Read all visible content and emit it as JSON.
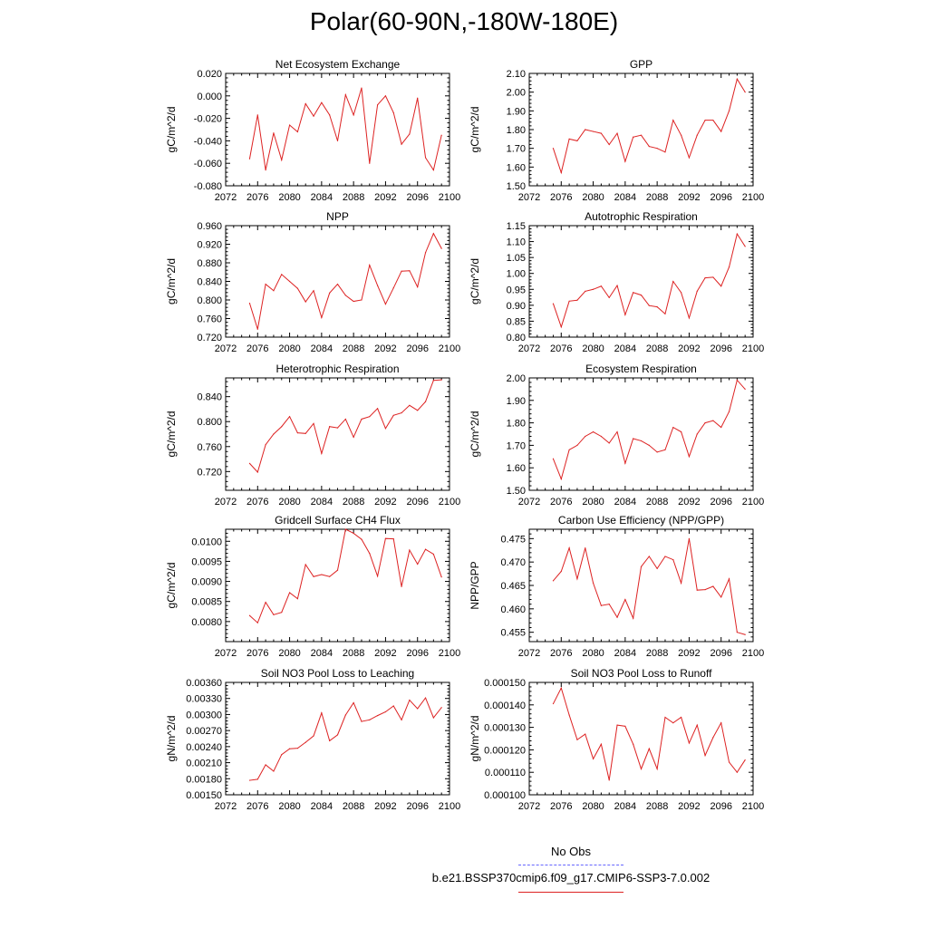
{
  "title": "Polar(60-90N,-180W-180E)",
  "legend": {
    "obs_label": "No Obs",
    "obs_color": "#6666ff",
    "model_label": "b.e21.BSSP370cmip6.f09_g17.CMIP6-SSP3-7.0.002",
    "model_color": "#dd2222"
  },
  "chart_data": [
    {
      "type": "line",
      "title": "Net Ecosystem Exchange",
      "ylabel": "gC/m^2/d",
      "xlim": [
        2072,
        2100
      ],
      "xticks": [
        "2072",
        "2076",
        "2080",
        "2084",
        "2088",
        "2092",
        "2096",
        "2100"
      ],
      "ylim": [
        -0.08,
        0.02
      ],
      "yticks": [
        "0.020",
        "0.000",
        "-0.020",
        "-0.040",
        "-0.060",
        "-0.080"
      ],
      "x": [
        2075,
        2076,
        2077,
        2078,
        2079,
        2080,
        2081,
        2082,
        2083,
        2084,
        2085,
        2086,
        2087,
        2088,
        2089,
        2090,
        2091,
        2092,
        2093,
        2094,
        2095,
        2096,
        2097,
        2098,
        2099
      ],
      "series": [
        {
          "values": [
            -0.056,
            -0.017,
            -0.066,
            -0.033,
            -0.057,
            -0.026,
            -0.032,
            -0.007,
            -0.018,
            -0.006,
            -0.017,
            -0.04,
            0.001,
            -0.017,
            0.007,
            -0.06,
            -0.008,
            0.0,
            -0.015,
            -0.043,
            -0.034,
            -0.002,
            -0.055,
            -0.066,
            -0.035
          ]
        }
      ]
    },
    {
      "type": "line",
      "title": "GPP",
      "ylabel": "gC/m^2/d",
      "xlim": [
        2072,
        2100
      ],
      "xticks": [
        "2072",
        "2076",
        "2080",
        "2084",
        "2088",
        "2092",
        "2096",
        "2100"
      ],
      "ylim": [
        1.5,
        2.1
      ],
      "yticks": [
        "2.10",
        "2.00",
        "1.90",
        "1.80",
        "1.70",
        "1.60",
        "1.50"
      ],
      "x": [
        2075,
        2076,
        2077,
        2078,
        2079,
        2080,
        2081,
        2082,
        2083,
        2084,
        2085,
        2086,
        2087,
        2088,
        2089,
        2090,
        2091,
        2092,
        2093,
        2094,
        2095,
        2096,
        2097,
        2098,
        2099
      ],
      "series": [
        {
          "values": [
            1.7,
            1.57,
            1.75,
            1.74,
            1.8,
            1.79,
            1.78,
            1.72,
            1.78,
            1.63,
            1.76,
            1.77,
            1.71,
            1.7,
            1.68,
            1.85,
            1.77,
            1.65,
            1.77,
            1.85,
            1.85,
            1.79,
            1.9,
            2.07,
            2.0
          ]
        }
      ]
    },
    {
      "type": "line",
      "title": "NPP",
      "ylabel": "gC/m^2/d",
      "xlim": [
        2072,
        2100
      ],
      "xticks": [
        "2072",
        "2076",
        "2080",
        "2084",
        "2088",
        "2092",
        "2096",
        "2100"
      ],
      "ylim": [
        0.72,
        0.96
      ],
      "yticks": [
        "0.960",
        "0.920",
        "0.880",
        "0.840",
        "0.800",
        "0.760",
        "0.720"
      ],
      "x": [
        2075,
        2076,
        2077,
        2078,
        2079,
        2080,
        2081,
        2082,
        2083,
        2084,
        2085,
        2086,
        2087,
        2088,
        2089,
        2090,
        2091,
        2092,
        2093,
        2094,
        2095,
        2096,
        2097,
        2098,
        2099
      ],
      "series": [
        {
          "values": [
            0.793,
            0.737,
            0.834,
            0.82,
            0.855,
            0.84,
            0.825,
            0.796,
            0.82,
            0.762,
            0.815,
            0.834,
            0.81,
            0.797,
            0.8,
            0.875,
            0.831,
            0.791,
            0.826,
            0.862,
            0.863,
            0.828,
            0.902,
            0.943,
            0.911
          ]
        }
      ]
    },
    {
      "type": "line",
      "title": "Autotrophic Respiration",
      "ylabel": "gC/m^2/d",
      "xlim": [
        2072,
        2100
      ],
      "xticks": [
        "2072",
        "2076",
        "2080",
        "2084",
        "2088",
        "2092",
        "2096",
        "2100"
      ],
      "ylim": [
        0.8,
        1.15
      ],
      "yticks": [
        "1.15",
        "1.10",
        "1.05",
        "1.00",
        "0.95",
        "0.90",
        "0.85",
        "0.80"
      ],
      "x": [
        2075,
        2076,
        2077,
        2078,
        2079,
        2080,
        2081,
        2082,
        2083,
        2084,
        2085,
        2086,
        2087,
        2088,
        2089,
        2090,
        2091,
        2092,
        2093,
        2094,
        2095,
        2096,
        2097,
        2098,
        2099
      ],
      "series": [
        {
          "values": [
            0.905,
            0.832,
            0.913,
            0.916,
            0.944,
            0.95,
            0.96,
            0.924,
            0.962,
            0.87,
            0.94,
            0.932,
            0.899,
            0.895,
            0.873,
            0.975,
            0.94,
            0.86,
            0.944,
            0.986,
            0.988,
            0.96,
            1.02,
            1.124,
            1.085
          ]
        }
      ]
    },
    {
      "type": "line",
      "title": "Heterotrophic Respiration",
      "ylabel": "gC/m^2/d",
      "xlim": [
        2072,
        2100
      ],
      "xticks": [
        "2072",
        "2076",
        "2080",
        "2084",
        "2088",
        "2092",
        "2096",
        "2100"
      ],
      "ylim": [
        0.69,
        0.87
      ],
      "yticks": [
        "0.840",
        "0.800",
        "0.760",
        "0.720"
      ],
      "x": [
        2075,
        2076,
        2077,
        2078,
        2079,
        2080,
        2081,
        2082,
        2083,
        2084,
        2085,
        2086,
        2087,
        2088,
        2089,
        2090,
        2091,
        2092,
        2093,
        2094,
        2095,
        2096,
        2097,
        2098,
        2099
      ],
      "series": [
        {
          "values": [
            0.733,
            0.719,
            0.763,
            0.78,
            0.792,
            0.808,
            0.782,
            0.781,
            0.797,
            0.749,
            0.792,
            0.79,
            0.804,
            0.775,
            0.804,
            0.808,
            0.821,
            0.789,
            0.81,
            0.814,
            0.826,
            0.818,
            0.832,
            0.866,
            0.867
          ]
        }
      ]
    },
    {
      "type": "line",
      "title": "Ecosystem Respiration",
      "ylabel": "gC/m^2/d",
      "xlim": [
        2072,
        2100
      ],
      "xticks": [
        "2072",
        "2076",
        "2080",
        "2084",
        "2088",
        "2092",
        "2096",
        "2100"
      ],
      "ylim": [
        1.5,
        2.0
      ],
      "yticks": [
        "2.00",
        "1.90",
        "1.80",
        "1.70",
        "1.60",
        "1.50"
      ],
      "x": [
        2075,
        2076,
        2077,
        2078,
        2079,
        2080,
        2081,
        2082,
        2083,
        2084,
        2085,
        2086,
        2087,
        2088,
        2089,
        2090,
        2091,
        2092,
        2093,
        2094,
        2095,
        2096,
        2097,
        2098,
        2099
      ],
      "series": [
        {
          "values": [
            1.64,
            1.55,
            1.68,
            1.7,
            1.74,
            1.76,
            1.74,
            1.71,
            1.76,
            1.62,
            1.73,
            1.72,
            1.7,
            1.67,
            1.68,
            1.78,
            1.76,
            1.65,
            1.75,
            1.8,
            1.81,
            1.78,
            1.85,
            1.99,
            1.95
          ]
        }
      ]
    },
    {
      "type": "line",
      "title": "Gridcell Surface CH4 Flux",
      "ylabel": "gC/m^2/d",
      "xlim": [
        2072,
        2100
      ],
      "xticks": [
        "2072",
        "2076",
        "2080",
        "2084",
        "2088",
        "2092",
        "2096",
        "2100"
      ],
      "ylim": [
        0.0075,
        0.0103
      ],
      "yticks": [
        "0.0100",
        "0.0095",
        "0.0090",
        "0.0085",
        "0.0080"
      ],
      "x": [
        2075,
        2076,
        2077,
        2078,
        2079,
        2080,
        2081,
        2082,
        2083,
        2084,
        2085,
        2086,
        2087,
        2088,
        2089,
        2090,
        2091,
        2092,
        2093,
        2094,
        2095,
        2096,
        2097,
        2098,
        2099
      ],
      "series": [
        {
          "values": [
            0.00815,
            0.00797,
            0.00848,
            0.00817,
            0.00823,
            0.00872,
            0.00857,
            0.00942,
            0.00912,
            0.00917,
            0.00912,
            0.00928,
            0.0103,
            0.0102,
            0.01005,
            0.0097,
            0.00913,
            0.01007,
            0.01006,
            0.00887,
            0.00978,
            0.00943,
            0.0098,
            0.00968,
            0.00911
          ]
        }
      ]
    },
    {
      "type": "line",
      "title": "Carbon Use Efficiency (NPP/GPP)",
      "ylabel": "NPP/GPP",
      "xlim": [
        2072,
        2100
      ],
      "xticks": [
        "2072",
        "2076",
        "2080",
        "2084",
        "2088",
        "2092",
        "2096",
        "2100"
      ],
      "ylim": [
        0.453,
        0.477
      ],
      "yticks": [
        "0.475",
        "0.470",
        "0.465",
        "0.460",
        "0.455"
      ],
      "x": [
        2075,
        2076,
        2077,
        2078,
        2079,
        2080,
        2081,
        2082,
        2083,
        2084,
        2085,
        2086,
        2087,
        2088,
        2089,
        2090,
        2091,
        2092,
        2093,
        2094,
        2095,
        2096,
        2097,
        2098,
        2099
      ],
      "series": [
        {
          "values": [
            0.466,
            0.468,
            0.473,
            0.4664,
            0.473,
            0.4655,
            0.4607,
            0.461,
            0.4582,
            0.462,
            0.458,
            0.469,
            0.4712,
            0.4686,
            0.4712,
            0.4705,
            0.4655,
            0.475,
            0.464,
            0.4641,
            0.4648,
            0.4625,
            0.4664,
            0.455,
            0.4545
          ]
        }
      ]
    },
    {
      "type": "line",
      "title": "Soil NO3 Pool Loss to Leaching",
      "ylabel": "gN/m^2/d",
      "xlim": [
        2072,
        2100
      ],
      "xticks": [
        "2072",
        "2076",
        "2080",
        "2084",
        "2088",
        "2092",
        "2096",
        "2100"
      ],
      "ylim": [
        0.0015,
        0.0036
      ],
      "yticks": [
        "0.00360",
        "0.00330",
        "0.00300",
        "0.00270",
        "0.00240",
        "0.00210",
        "0.00180",
        "0.00150"
      ],
      "x": [
        2075,
        2076,
        2077,
        2078,
        2079,
        2080,
        2081,
        2082,
        2083,
        2084,
        2085,
        2086,
        2087,
        2088,
        2089,
        2090,
        2091,
        2092,
        2093,
        2094,
        2095,
        2096,
        2097,
        2098,
        2099
      ],
      "series": [
        {
          "values": [
            0.00177,
            0.00179,
            0.00206,
            0.00194,
            0.00225,
            0.00236,
            0.00237,
            0.00248,
            0.0026,
            0.00303,
            0.00251,
            0.00262,
            0.00299,
            0.00322,
            0.00287,
            0.0029,
            0.00298,
            0.00305,
            0.00316,
            0.0029,
            0.00327,
            0.00311,
            0.00331,
            0.00294,
            0.00313
          ]
        }
      ]
    },
    {
      "type": "line",
      "title": "Soil NO3 Pool Loss to Runoff",
      "ylabel": "gN/m^2/d",
      "xlim": [
        2072,
        2100
      ],
      "xticks": [
        "2072",
        "2076",
        "2080",
        "2084",
        "2088",
        "2092",
        "2096",
        "2100"
      ],
      "ylim": [
        0.0001,
        0.00015
      ],
      "yticks": [
        "0.000150",
        "0.000140",
        "0.000130",
        "0.000120",
        "0.000110",
        "0.000100"
      ],
      "x": [
        2075,
        2076,
        2077,
        2078,
        2079,
        2080,
        2081,
        2082,
        2083,
        2084,
        2085,
        2086,
        2087,
        2088,
        2089,
        2090,
        2091,
        2092,
        2093,
        2094,
        2095,
        2096,
        2097,
        2098,
        2099
      ],
      "series": [
        {
          "values": [
            0.0001405,
            0.0001475,
            0.0001355,
            0.0001245,
            0.000127,
            0.000116,
            0.0001225,
            0.0001065,
            0.000131,
            0.0001305,
            0.0001225,
            0.0001115,
            0.0001205,
            0.0001115,
            0.0001345,
            0.000132,
            0.0001345,
            0.000123,
            0.000131,
            0.0001175,
            0.0001255,
            0.000132,
            0.0001145,
            0.00011,
            0.0001155
          ]
        }
      ]
    }
  ]
}
